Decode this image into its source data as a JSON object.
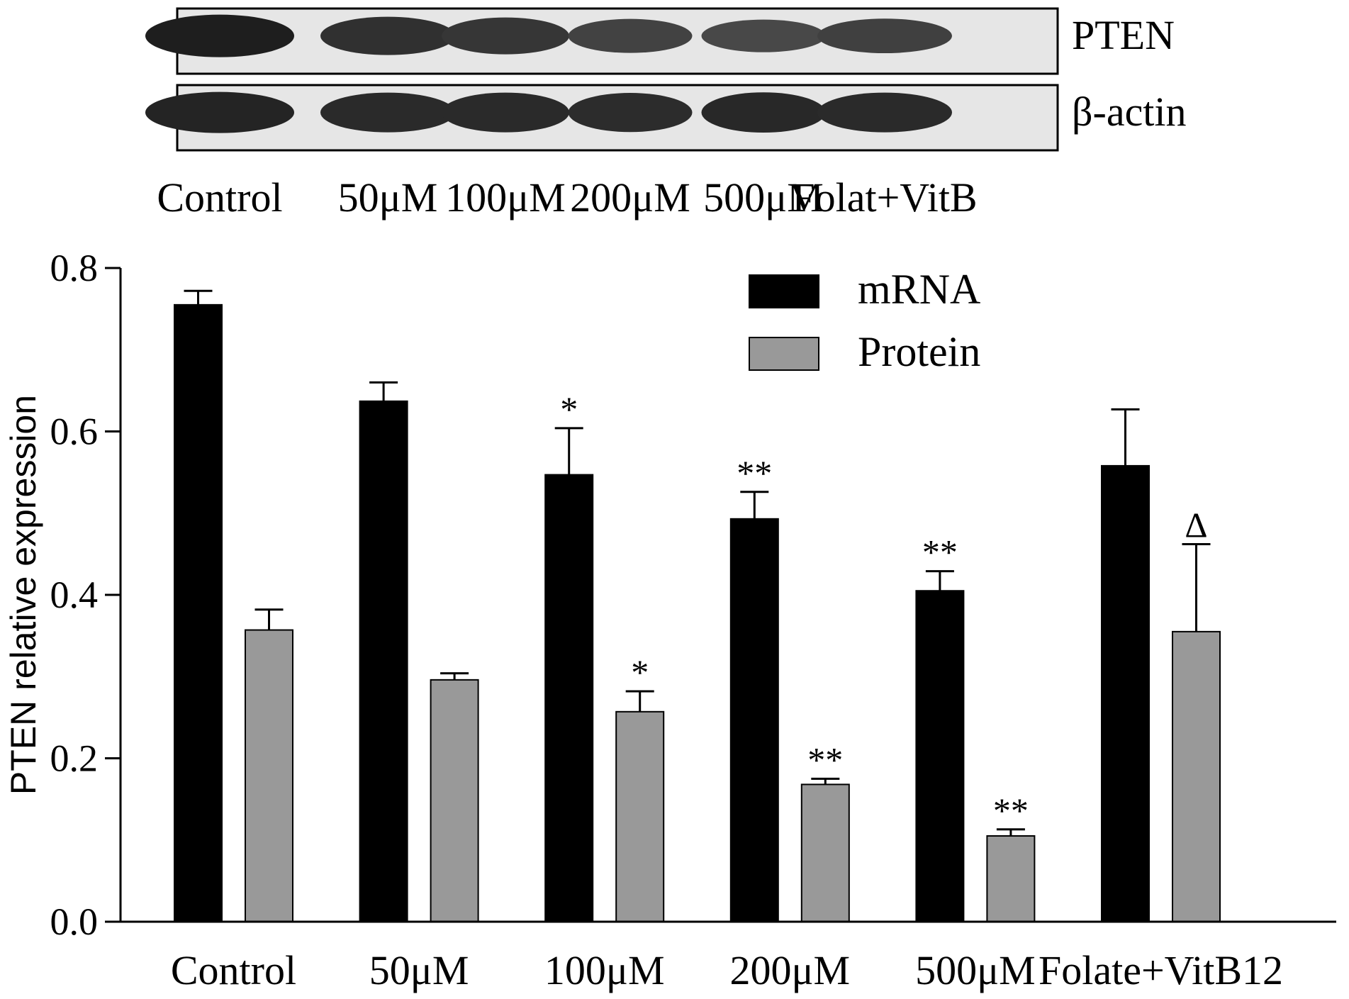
{
  "blot": {
    "bands": [
      {
        "name": "PTEN",
        "label": "PTEN",
        "intensity": [
          1.0,
          0.85,
          0.8,
          0.7,
          0.65,
          0.72
        ]
      },
      {
        "name": "beta-actin",
        "label": "β-actin",
        "intensity": [
          0.95,
          0.9,
          0.9,
          0.88,
          0.92,
          0.9
        ]
      }
    ],
    "lanes": [
      "Control",
      "50μM",
      "100μM",
      "200μM",
      "500μM",
      "Folat+VitB"
    ]
  },
  "chart_data": {
    "type": "bar",
    "categories": [
      "Control",
      "50μM",
      "100μM",
      "200μM",
      "500μM",
      "Folate+VitB12"
    ],
    "series": [
      {
        "name": "mRNA",
        "color": "#000000",
        "values": [
          0.755,
          0.637,
          0.547,
          0.493,
          0.405,
          0.558
        ],
        "errors": [
          0.017,
          0.023,
          0.057,
          0.033,
          0.024,
          0.069
        ],
        "annotations": [
          "",
          "",
          "*",
          "**",
          "**",
          ""
        ]
      },
      {
        "name": "Protein",
        "color": "#999999",
        "values": [
          0.357,
          0.296,
          0.257,
          0.168,
          0.105,
          0.355
        ],
        "errors": [
          0.025,
          0.008,
          0.025,
          0.007,
          0.008,
          0.107
        ],
        "annotations": [
          "",
          "",
          "*",
          "**",
          "**",
          "Δ"
        ]
      }
    ],
    "ylabel": "PTEN relative expression",
    "xlabel": "",
    "ylim": [
      0,
      0.8
    ],
    "yticks": [
      "0.0",
      "0.2",
      "0.4",
      "0.6",
      "0.8"
    ],
    "legend_position": "top-right",
    "grid": false
  }
}
